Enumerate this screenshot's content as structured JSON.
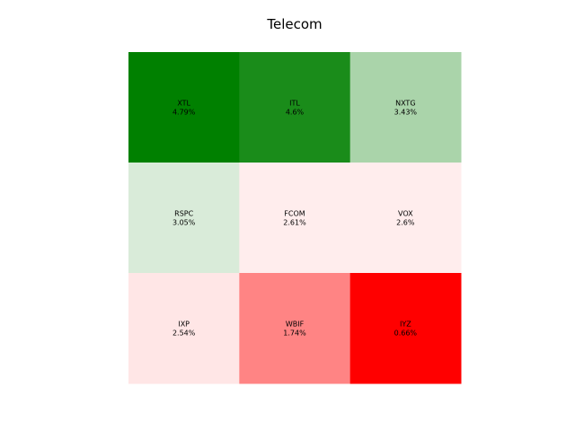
{
  "chart_data": {
    "type": "heatmap",
    "subtype": "treemap-grid",
    "title": "Telecom",
    "rows": 3,
    "cols": 3,
    "cells": [
      {
        "ticker": "XTL",
        "value_label": "4.79%",
        "value": 4.79,
        "color": "#008000"
      },
      {
        "ticker": "ITL",
        "value_label": "4.6%",
        "value": 4.6,
        "color": "#1a8c1a"
      },
      {
        "ticker": "NXTG",
        "value_label": "3.43%",
        "value": 3.43,
        "color": "#aad4aa"
      },
      {
        "ticker": "RSPC",
        "value_label": "3.05%",
        "value": 3.05,
        "color": "#d9ebd9"
      },
      {
        "ticker": "FCOM",
        "value_label": "2.61%",
        "value": 2.61,
        "color": "#ffeded"
      },
      {
        "ticker": "VOX",
        "value_label": "2.6%",
        "value": 2.6,
        "color": "#ffeded"
      },
      {
        "ticker": "IXP",
        "value_label": "2.54%",
        "value": 2.54,
        "color": "#ffe6e6"
      },
      {
        "ticker": "WBIF",
        "value_label": "1.74%",
        "value": 1.74,
        "color": "#ff8484"
      },
      {
        "ticker": "IYZ",
        "value_label": "0.66%",
        "value": 0.66,
        "color": "#ff0000"
      }
    ],
    "grid": false,
    "legend": "none"
  }
}
